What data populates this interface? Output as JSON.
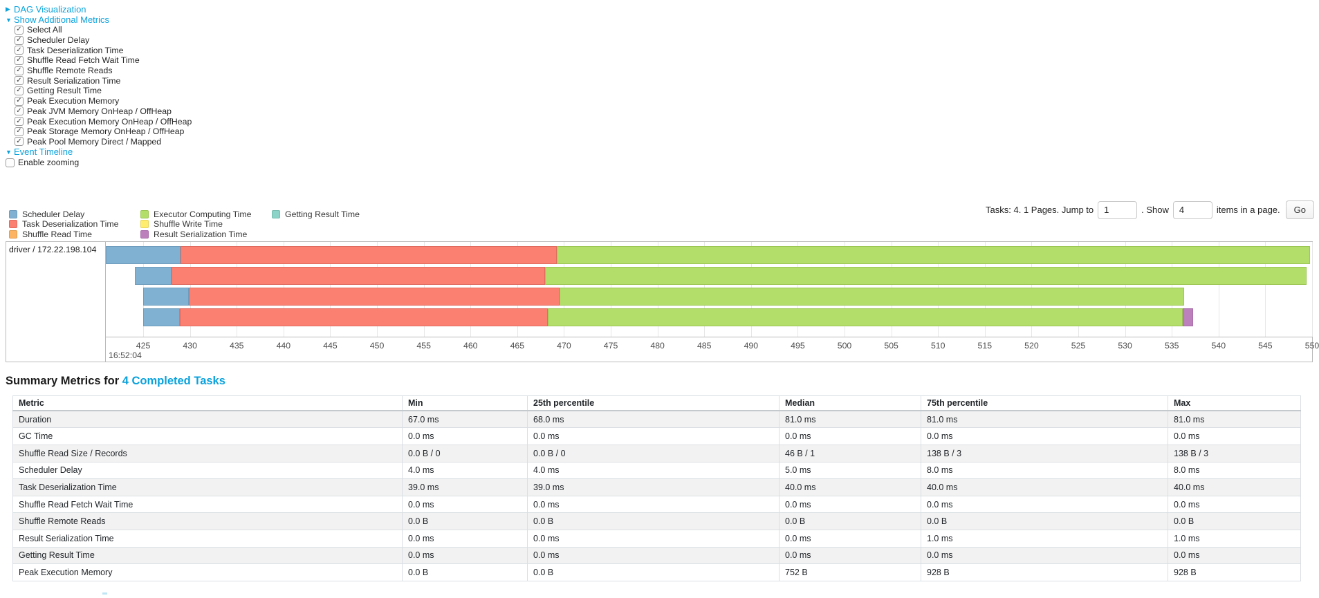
{
  "link_color": "#0aa2dc",
  "sections": {
    "dag": {
      "label": "DAG Visualization",
      "state": "collapsed"
    },
    "additional_metrics": {
      "label": "Show Additional Metrics",
      "state": "expanded",
      "checkboxes": [
        {
          "label": "Select All",
          "checked": true
        },
        {
          "label": "Scheduler Delay",
          "checked": true
        },
        {
          "label": "Task Deserialization Time",
          "checked": true
        },
        {
          "label": "Shuffle Read Fetch Wait Time",
          "checked": true
        },
        {
          "label": "Shuffle Remote Reads",
          "checked": true
        },
        {
          "label": "Result Serialization Time",
          "checked": true
        },
        {
          "label": "Getting Result Time",
          "checked": true
        },
        {
          "label": "Peak Execution Memory",
          "checked": true
        },
        {
          "label": "Peak JVM Memory OnHeap / OffHeap",
          "checked": true
        },
        {
          "label": "Peak Execution Memory OnHeap / OffHeap",
          "checked": true
        },
        {
          "label": "Peak Storage Memory OnHeap / OffHeap",
          "checked": true
        },
        {
          "label": "Peak Pool Memory Direct / Mapped",
          "checked": true
        }
      ]
    },
    "event_timeline": {
      "label": "Event Timeline",
      "state": "expanded"
    },
    "enable_zooming": {
      "label": "Enable zooming",
      "checked": false
    }
  },
  "legend": {
    "columns": [
      [
        {
          "label": "Scheduler Delay",
          "color": "#80B1D3",
          "border": "#6e9cbc"
        },
        {
          "label": "Task Deserialization Time",
          "color": "#FB8072",
          "border": "#e06a5e"
        },
        {
          "label": "Shuffle Read Time",
          "color": "#FDB462",
          "border": "#e09c4e"
        }
      ],
      [
        {
          "label": "Executor Computing Time",
          "color": "#B3DE69",
          "border": "#9cc653"
        },
        {
          "label": "Shuffle Write Time",
          "color": "#FFED6F",
          "border": "#e6d55a"
        },
        {
          "label": "Result Serialization Time",
          "color": "#BC80BD",
          "border": "#a86ca9"
        }
      ],
      [
        {
          "label": "Getting Result Time",
          "color": "#8DD3C7",
          "border": "#76bcae"
        }
      ]
    ]
  },
  "pagination": {
    "prefix": "Tasks: 4. 1 Pages. Jump to",
    "jump_value": "1",
    "mid": ". Show",
    "show_value": "4",
    "suffix": "items in a page.",
    "go_label": "Go"
  },
  "chart_data": {
    "type": "timeline-gantt",
    "group_label": "driver / 172.22.198.104",
    "time_axis": {
      "unit": "milliseconds within second 16:52:04",
      "major_label": "16:52:04",
      "tick_start": 425,
      "tick_end": 550,
      "tick_step": 5,
      "window_start": 421,
      "window_end": 550
    },
    "segment_order": [
      "scheduler_delay",
      "task_deserialization",
      "executor_computing",
      "result_serialization"
    ],
    "segment_colors": {
      "scheduler_delay": {
        "fill": "#80B1D3",
        "border": "#6e9cbc"
      },
      "task_deserialization": {
        "fill": "#FB8072",
        "border": "#e06a5e"
      },
      "executor_computing": {
        "fill": "#B3DE69",
        "border": "#9cc653"
      },
      "result_serialization": {
        "fill": "#BC80BD",
        "border": "#a86ca9"
      }
    },
    "tasks": [
      {
        "start": 421.0,
        "scheduler_delay": 8.0,
        "task_deserialization": 40.2,
        "executor_computing": 80.6,
        "result_serialization": 0
      },
      {
        "start": 424.1,
        "scheduler_delay": 3.9,
        "task_deserialization": 40.0,
        "executor_computing": 81.4,
        "result_serialization": 0
      },
      {
        "start": 425.0,
        "scheduler_delay": 4.9,
        "task_deserialization": 39.6,
        "executor_computing": 66.8,
        "result_serialization": 0
      },
      {
        "start": 425.0,
        "scheduler_delay": 3.9,
        "task_deserialization": 39.4,
        "executor_computing": 67.9,
        "result_serialization": 1.1
      }
    ]
  },
  "summary": {
    "title_prefix": "Summary Metrics for ",
    "title_link": "4 Completed Tasks",
    "table": {
      "headers": [
        "Metric",
        "Min",
        "25th percentile",
        "Median",
        "75th percentile",
        "Max"
      ],
      "rows": [
        {
          "metric": "Duration",
          "values": [
            "67.0 ms",
            "68.0 ms",
            "81.0 ms",
            "81.0 ms",
            "81.0 ms"
          ]
        },
        {
          "metric": "GC Time",
          "values": [
            "0.0 ms",
            "0.0 ms",
            "0.0 ms",
            "0.0 ms",
            "0.0 ms"
          ]
        },
        {
          "metric": "Shuffle Read Size / Records",
          "values": [
            "0.0 B / 0",
            "0.0 B / 0",
            "46 B / 1",
            "138 B / 3",
            "138 B / 3"
          ]
        },
        {
          "metric": "Scheduler Delay",
          "values": [
            "4.0 ms",
            "4.0 ms",
            "5.0 ms",
            "8.0 ms",
            "8.0 ms"
          ]
        },
        {
          "metric": "Task Deserialization Time",
          "values": [
            "39.0 ms",
            "39.0 ms",
            "40.0 ms",
            "40.0 ms",
            "40.0 ms"
          ]
        },
        {
          "metric": "Shuffle Read Fetch Wait Time",
          "values": [
            "0.0 ms",
            "0.0 ms",
            "0.0 ms",
            "0.0 ms",
            "0.0 ms"
          ]
        },
        {
          "metric": "Shuffle Remote Reads",
          "values": [
            "0.0 B",
            "0.0 B",
            "0.0 B",
            "0.0 B",
            "0.0 B"
          ]
        },
        {
          "metric": "Result Serialization Time",
          "values": [
            "0.0 ms",
            "0.0 ms",
            "0.0 ms",
            "1.0 ms",
            "1.0 ms"
          ]
        },
        {
          "metric": "Getting Result Time",
          "values": [
            "0.0 ms",
            "0.0 ms",
            "0.0 ms",
            "0.0 ms",
            "0.0 ms"
          ]
        },
        {
          "metric": "Peak Execution Memory",
          "values": [
            "0.0 B",
            "0.0 B",
            "752 B",
            "928 B",
            "928 B"
          ]
        }
      ]
    }
  }
}
